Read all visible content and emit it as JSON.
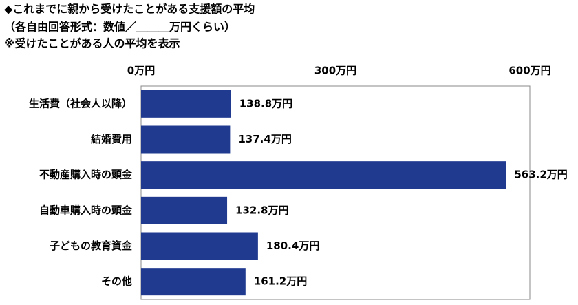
{
  "chart_data": {
    "type": "barh",
    "title": "◆これまでに親から受けたことがある支援額の平均",
    "subtitle": "（各自由回答形式：数値／＿＿＿万円くらい）",
    "note": "※受けたことがある人の平均を表示",
    "categories": [
      "生活費（社会人以降）",
      "結婚費用",
      "不動産購入時の頭金",
      "自動車購入時の頭金",
      "子どもの教育資金",
      "その他"
    ],
    "values": [
      138.8,
      137.4,
      563.2,
      132.8,
      180.4,
      161.2
    ],
    "value_labels": [
      "138.8万円",
      "137.4万円",
      "563.2万円",
      "132.8万円",
      "180.4万円",
      "161.2万円"
    ],
    "color": "#1f3a8f",
    "xlim": [
      0,
      600
    ],
    "xticks": [
      {
        "value": 0,
        "label": "0万円"
      },
      {
        "value": 300,
        "label": "300万円"
      },
      {
        "value": 600,
        "label": "600万円"
      }
    ]
  }
}
